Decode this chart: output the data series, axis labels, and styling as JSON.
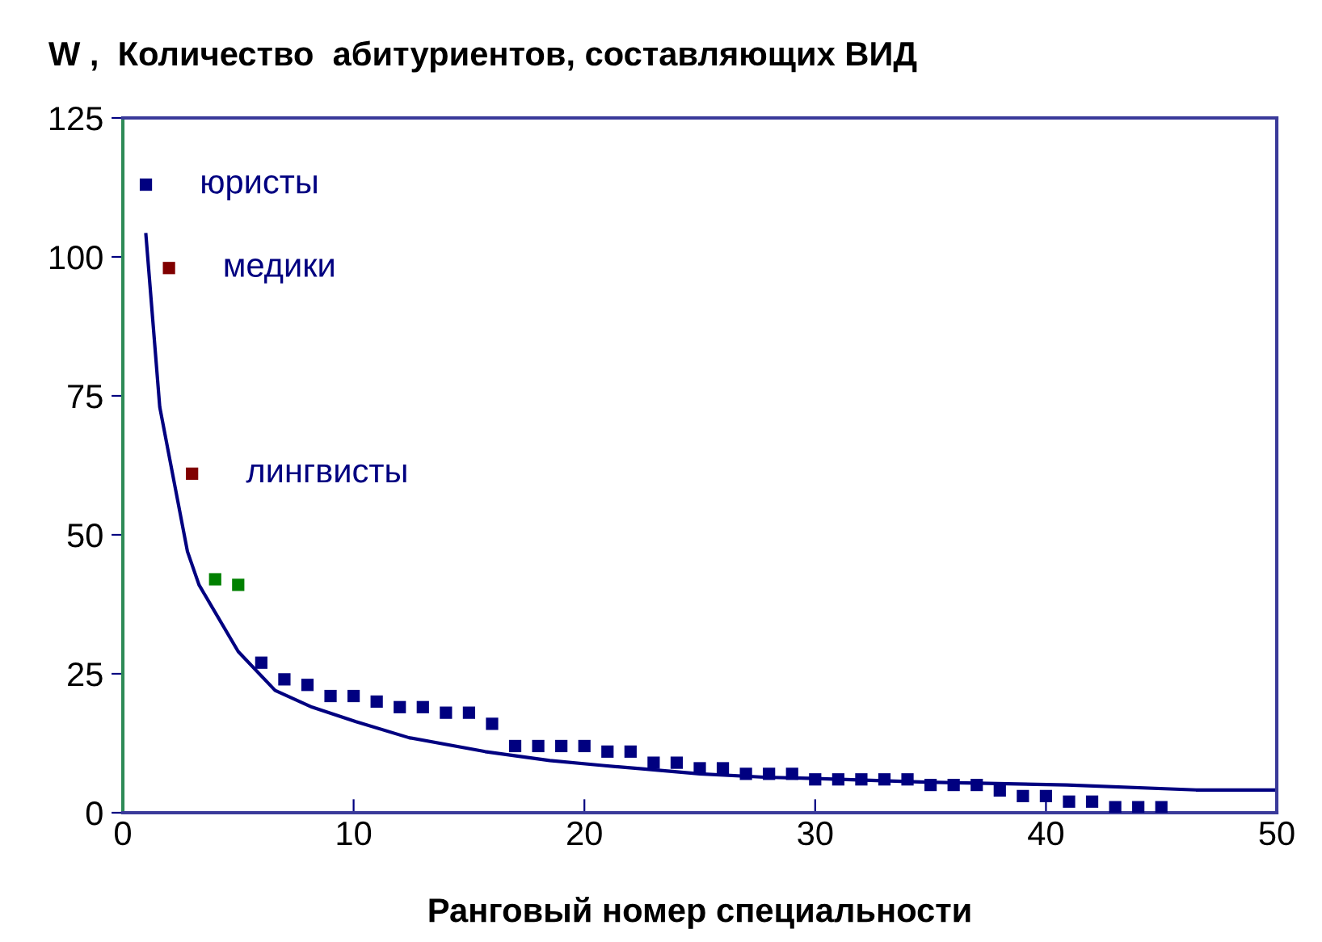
{
  "chart_data": {
    "type": "scatter",
    "title": "W ,  Количество  абитуриентов, составляющих ВИД",
    "xlabel": "Ранговый номер специальности",
    "xlim": [
      0,
      50
    ],
    "xticks": [
      0,
      10,
      20,
      30,
      40,
      50
    ],
    "ylim": [
      0,
      125
    ],
    "yticks": [
      0,
      25,
      50,
      75,
      100,
      125
    ],
    "grid": false,
    "legend": false,
    "series": [
      {
        "marker": "square",
        "x": [
          1,
          2,
          3,
          4,
          5,
          6,
          7,
          8,
          9,
          10,
          11,
          12,
          13,
          14,
          15,
          16,
          17,
          18,
          19,
          20,
          21,
          22,
          23,
          24,
          25,
          26,
          27,
          28,
          29,
          30,
          31,
          32,
          33,
          34,
          35,
          36,
          37,
          38,
          39,
          40,
          41,
          42,
          43,
          44,
          45
        ],
        "values": [
          113,
          98,
          61,
          42,
          41,
          27,
          24,
          23,
          21,
          21,
          20,
          19,
          19,
          18,
          18,
          16,
          12,
          12,
          12,
          12,
          11,
          11,
          9,
          9,
          8,
          8,
          7,
          7,
          7,
          6,
          6,
          6,
          6,
          6,
          5,
          5,
          5,
          4,
          3,
          3,
          2,
          2,
          1,
          1,
          1
        ],
        "colors": [
          "#000080",
          "#800000",
          "#800000",
          "#008000",
          "#008000",
          "#000080",
          "#000080",
          "#000080",
          "#000080",
          "#000080",
          "#000080",
          "#000080",
          "#000080",
          "#000080",
          "#000080",
          "#000080",
          "#000080",
          "#000080",
          "#000080",
          "#000080",
          "#000080",
          "#000080",
          "#000080",
          "#000080",
          "#000080",
          "#000080",
          "#000080",
          "#000080",
          "#000080",
          "#000080",
          "#000080",
          "#000080",
          "#000080",
          "#000080",
          "#000080",
          "#000080",
          "#000080",
          "#000080",
          "#000080",
          "#000080",
          "#000080",
          "#000080",
          "#000080",
          "#000080",
          "#000080"
        ]
      },
      {
        "type": "line",
        "marker": "none",
        "line_style": "solid",
        "color": "#000080",
        "x": [
          1,
          1.6,
          2.8,
          3.3,
          5,
          6.6,
          8.2,
          10.1,
          12.4,
          15.7,
          18.5,
          20.8,
          22.5,
          25,
          27.8,
          29.7,
          34.8,
          40.9,
          46.5,
          50
        ],
        "values": [
          104,
          73,
          47,
          41,
          29,
          22,
          19,
          16.4,
          13.5,
          11,
          9.4,
          8.5,
          7.9,
          7,
          6.4,
          6.2,
          5.5,
          5,
          4.1,
          4.1
        ]
      }
    ],
    "annotations": [
      {
        "text": "юристы",
        "x": 1,
        "y": 113
      },
      {
        "text": "медики",
        "x": 2,
        "y": 98
      },
      {
        "text": "лингвисты",
        "x": 3,
        "y": 61
      }
    ]
  }
}
